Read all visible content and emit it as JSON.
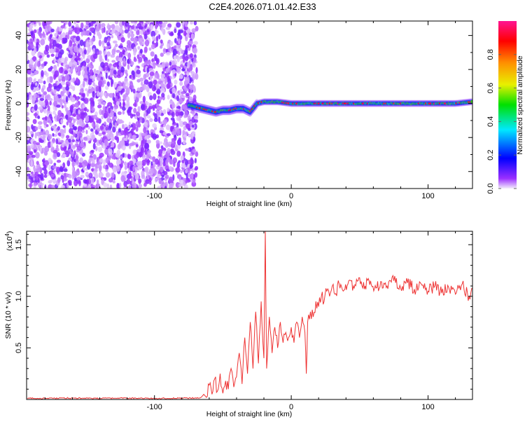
{
  "title": "C2E4.2026.071.01.42.E33",
  "chart_data": [
    {
      "type": "heatmap",
      "title": "C2E4.2026.071.01.42.E33",
      "xlabel": "Height of straight line (km)",
      "ylabel": "Frequency (Hz)",
      "xlim": [
        -193.5,
        132.5
      ],
      "ylim": [
        -50,
        48.5
      ],
      "xticks": [
        -100,
        0,
        100
      ],
      "xtick_labels": [
        "-100",
        "0",
        "100"
      ],
      "yticks": [
        -40,
        -20,
        0,
        20,
        40
      ],
      "ytick_labels": [
        "-40",
        "-20",
        "0",
        "20",
        "40"
      ],
      "noise_region_xmax": -72,
      "ridge": {
        "x": [
          -75,
          -70,
          -65,
          -60,
          -55,
          -50,
          -45,
          -40,
          -35,
          -30,
          -27,
          -25,
          -20,
          -10,
          0,
          20,
          40,
          60,
          80,
          100,
          120,
          132
        ],
        "freq": [
          -1,
          -2,
          -3,
          -4,
          -5,
          -4,
          -4,
          -3,
          -3,
          -5,
          -2,
          0,
          1,
          1,
          0,
          0,
          0,
          0,
          0,
          0,
          0,
          1
        ],
        "amplitude": [
          0.4,
          0.5,
          0.6,
          0.7,
          0.75,
          0.8,
          0.8,
          0.6,
          0.5,
          0.5,
          0.4,
          0.6,
          0.9,
          0.9,
          0.9,
          0.85,
          0.7,
          0.85,
          0.7,
          0.9,
          0.75,
          0.8
        ]
      },
      "colorbar": {
        "label": "Normalized spectral amplitude",
        "range": [
          0,
          1
        ],
        "ticks": [
          0.0,
          0.2,
          0.4,
          0.6,
          0.8
        ],
        "tick_labels": [
          "0.0",
          "0.2",
          "0.4",
          "0.6",
          "0.8"
        ],
        "stops": [
          {
            "v": 0.0,
            "color": "#f4eefc"
          },
          {
            "v": 0.06,
            "color": "#9b30ff"
          },
          {
            "v": 0.18,
            "color": "#0000ff"
          },
          {
            "v": 0.35,
            "color": "#00e8ff"
          },
          {
            "v": 0.5,
            "color": "#00e000"
          },
          {
            "v": 0.62,
            "color": "#e8f000"
          },
          {
            "v": 0.75,
            "color": "#ff9000"
          },
          {
            "v": 0.88,
            "color": "#ff0000"
          },
          {
            "v": 1.0,
            "color": "#ff1493"
          }
        ]
      }
    },
    {
      "type": "line",
      "xlabel": "Height of straight line (km)",
      "ylabel": "SNR (10 * v/v)",
      "y_multiplier": "(x10",
      "y_multiplier_exp": "4",
      "y_multiplier_close": ")",
      "xlim": [
        -193.5,
        132.5
      ],
      "ylim": [
        0,
        1.63
      ],
      "xticks": [
        -100,
        0,
        100
      ],
      "xtick_labels": [
        "-100",
        "0",
        "100"
      ],
      "yticks": [
        0.5,
        1.0,
        1.5
      ],
      "ytick_labels": [
        "0.5",
        "1.0",
        "1.5"
      ],
      "series": [
        {
          "name": "SNR",
          "color": "#ee3333",
          "x": [
            -193,
            -180,
            -160,
            -140,
            -120,
            -100,
            -80,
            -68,
            -66,
            -64,
            -62,
            -60,
            -58,
            -56,
            -54,
            -52,
            -50,
            -48,
            -46,
            -44,
            -42,
            -40,
            -38,
            -36,
            -34,
            -32,
            -30,
            -28,
            -26,
            -24,
            -22,
            -20,
            -19,
            -18,
            -16,
            -14,
            -12,
            -10,
            -8,
            -6,
            -4,
            -2,
            0,
            2,
            4,
            6,
            8,
            10,
            11,
            12,
            14,
            16,
            18,
            20,
            22,
            24,
            26,
            28,
            30,
            32,
            35,
            38,
            42,
            46,
            50,
            54,
            58,
            62,
            66,
            70,
            75,
            80,
            85,
            90,
            95,
            100,
            105,
            110,
            115,
            120,
            125,
            130,
            132
          ],
          "y": [
            0.012,
            0.01,
            0.015,
            0.01,
            0.013,
            0.01,
            0.014,
            0.012,
            0.02,
            0.05,
            0.02,
            0.14,
            0.05,
            0.2,
            0.08,
            0.25,
            0.06,
            0.18,
            0.1,
            0.3,
            0.12,
            0.22,
            0.45,
            0.15,
            0.6,
            0.25,
            0.75,
            0.3,
            0.85,
            0.35,
            0.95,
            0.4,
            1.63,
            0.3,
            0.8,
            0.45,
            0.7,
            0.5,
            0.75,
            0.55,
            0.65,
            0.6,
            0.7,
            0.55,
            0.75,
            0.6,
            0.8,
            0.65,
            0.25,
            0.75,
            0.85,
            0.8,
            0.95,
            0.9,
            1.0,
            0.95,
            1.05,
            1.0,
            1.1,
            1.02,
            1.12,
            1.05,
            1.15,
            1.08,
            1.18,
            1.1,
            1.15,
            1.08,
            1.14,
            1.1,
            1.15,
            1.08,
            1.13,
            1.07,
            1.12,
            1.05,
            1.1,
            1.03,
            1.09,
            1.02,
            1.12,
            1.0,
            1.08
          ]
        }
      ]
    }
  ]
}
